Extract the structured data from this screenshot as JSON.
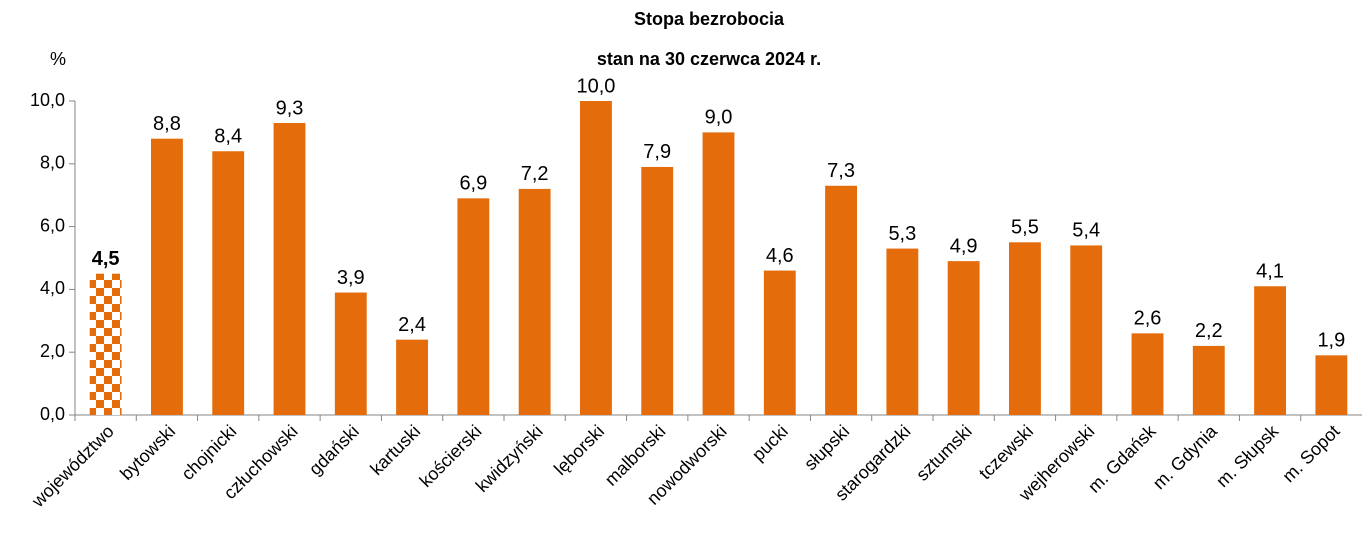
{
  "chart_data": {
    "type": "bar",
    "title": "Stopa bezrobocia",
    "subtitle": "stan na 30 czerwca 2024 r.",
    "y_label": "%",
    "categories": [
      "województwo",
      "bytowski",
      "chojnicki",
      "człuchowski",
      "gdański",
      "kartuski",
      "kościerski",
      "kwidzyński",
      "lęborski",
      "malborski",
      "nowodworski",
      "pucki",
      "słupski",
      "starogardzki",
      "sztumski",
      "tczewski",
      "wejherowski",
      "m. Gdańsk",
      "m. Gdynia",
      "m. Słupsk",
      "m. Sopot"
    ],
    "values": [
      4.5,
      8.8,
      8.4,
      9.3,
      3.9,
      2.4,
      6.9,
      7.2,
      10.0,
      7.9,
      9.0,
      4.6,
      7.3,
      5.3,
      4.9,
      5.5,
      5.4,
      2.6,
      2.2,
      4.1,
      1.9
    ],
    "value_labels": [
      "4,5",
      "8,8",
      "8,4",
      "9,3",
      "3,9",
      "2,4",
      "6,9",
      "7,2",
      "10,0",
      "7,9",
      "9,0",
      "4,6",
      "7,3",
      "5,3",
      "4,9",
      "5,5",
      "5,4",
      "2,6",
      "2,2",
      "4,1",
      "1,9"
    ],
    "color": "#e46c0a",
    "highlight_index": 0,
    "ylim": [
      0,
      10
    ],
    "yticks": [
      {
        "value": 0,
        "label": "0,0"
      },
      {
        "value": 2,
        "label": "2,0"
      },
      {
        "value": 4,
        "label": "4,0"
      },
      {
        "value": 6,
        "label": "6,0"
      },
      {
        "value": 8,
        "label": "8,0"
      },
      {
        "value": 10,
        "label": "10,0"
      }
    ],
    "grid": false
  }
}
